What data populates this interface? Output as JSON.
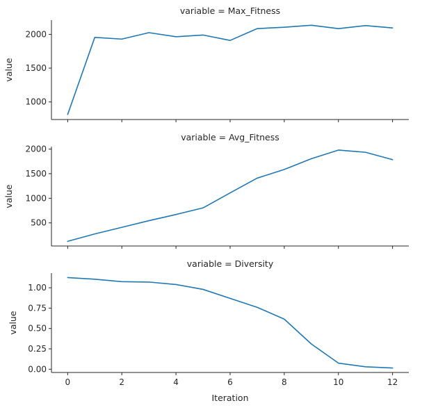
{
  "chart_data": {
    "type": "line",
    "xlabel": "Iteration",
    "x": [
      0,
      1,
      2,
      3,
      4,
      5,
      6,
      7,
      8,
      9,
      10,
      11,
      12
    ],
    "xticks": [
      0,
      2,
      4,
      6,
      8,
      10,
      12
    ],
    "xlim": [
      -0.6,
      12.6
    ],
    "color": "#1f77b4",
    "panels": [
      {
        "title": "variable = Max_Fitness",
        "ylabel": "value",
        "ylim": [
          740,
          2210
        ],
        "yticks": [
          1000,
          1500,
          2000
        ],
        "values": [
          815,
          1955,
          1930,
          2025,
          1965,
          1990,
          1910,
          2085,
          2105,
          2135,
          2085,
          2130,
          2095
        ]
      },
      {
        "title": "variable = Avg_Fitness",
        "ylabel": "value",
        "ylim": [
          30,
          2050
        ],
        "yticks": [
          500,
          1000,
          1500,
          2000
        ],
        "values": [
          125,
          275,
          410,
          545,
          670,
          805,
          1110,
          1410,
          1585,
          1805,
          1980,
          1935,
          1785
        ]
      },
      {
        "title": "variable = Diversity",
        "ylabel": "value",
        "ylim": [
          -0.04,
          1.18
        ],
        "yticks": [
          0.0,
          0.25,
          0.5,
          0.75,
          1.0
        ],
        "ytick_labels": [
          "0.00",
          "0.25",
          "0.50",
          "0.75",
          "1.00"
        ],
        "values": [
          1.125,
          1.105,
          1.075,
          1.07,
          1.04,
          0.98,
          0.87,
          0.76,
          0.615,
          0.31,
          0.075,
          0.03,
          0.015
        ]
      }
    ]
  }
}
